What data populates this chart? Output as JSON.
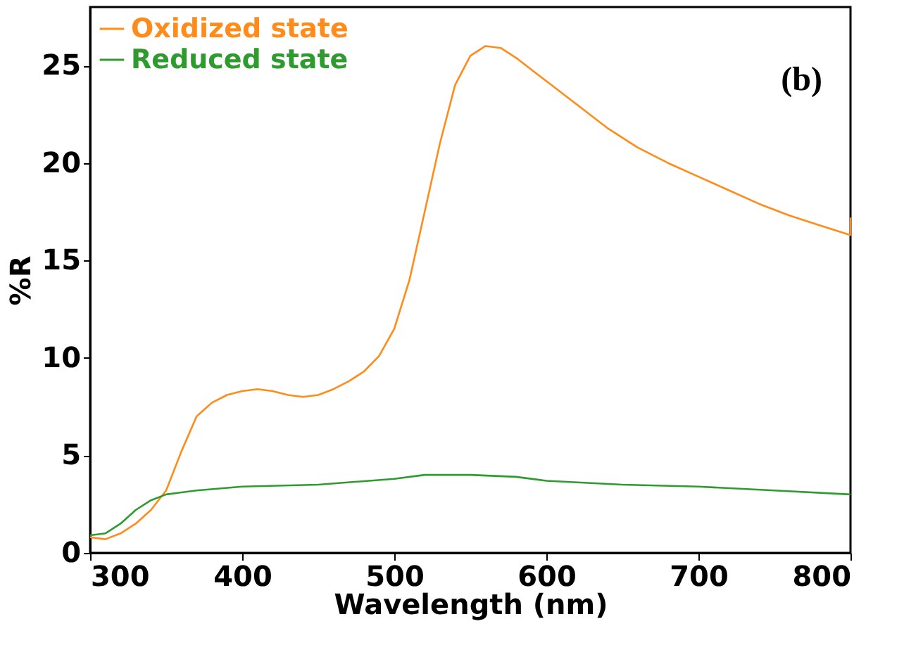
{
  "chart_data": {
    "type": "line",
    "xlabel": "Wavelength (nm)",
    "ylabel": "%R",
    "xlim": [
      300,
      800
    ],
    "xticks": [
      300,
      400,
      500,
      600,
      700,
      800
    ],
    "ylim": [
      0,
      28
    ],
    "yticks": [
      0,
      5,
      10,
      15,
      20,
      25
    ],
    "grid": false,
    "legend": "top left",
    "marker": "none",
    "line_style": "solid",
    "annotations": [
      "(b)"
    ],
    "series": [
      {
        "name": "Oxidized state",
        "color": "#ff8c1a",
        "x": [
          300,
          310,
          320,
          330,
          340,
          350,
          360,
          370,
          380,
          390,
          400,
          410,
          420,
          430,
          440,
          450,
          460,
          470,
          480,
          490,
          500,
          510,
          520,
          530,
          540,
          550,
          560,
          570,
          580,
          600,
          620,
          640,
          660,
          680,
          700,
          720,
          740,
          760,
          780,
          800,
          800
        ],
        "values": [
          0.8,
          0.7,
          1.0,
          1.5,
          2.2,
          3.2,
          5.2,
          7.0,
          7.7,
          8.1,
          8.3,
          8.4,
          8.3,
          8.1,
          8.0,
          8.1,
          8.4,
          8.8,
          9.3,
          10.1,
          11.5,
          14,
          17.5,
          21,
          24,
          25.5,
          26,
          25.9,
          25.4,
          24.2,
          23,
          21.8,
          20.8,
          20,
          19.3,
          18.6,
          17.9,
          17.3,
          16.8,
          16.3,
          17.2
        ]
      },
      {
        "name": "Reduced state",
        "color": "#2e9b2e",
        "x": [
          300,
          310,
          320,
          330,
          340,
          350,
          370,
          400,
          450,
          500,
          520,
          550,
          580,
          600,
          650,
          700,
          750,
          800
        ],
        "values": [
          0.9,
          1.0,
          1.5,
          2.2,
          2.7,
          3.0,
          3.2,
          3.4,
          3.5,
          3.8,
          4.0,
          4.0,
          3.9,
          3.7,
          3.5,
          3.4,
          3.2,
          3.0
        ]
      }
    ]
  }
}
